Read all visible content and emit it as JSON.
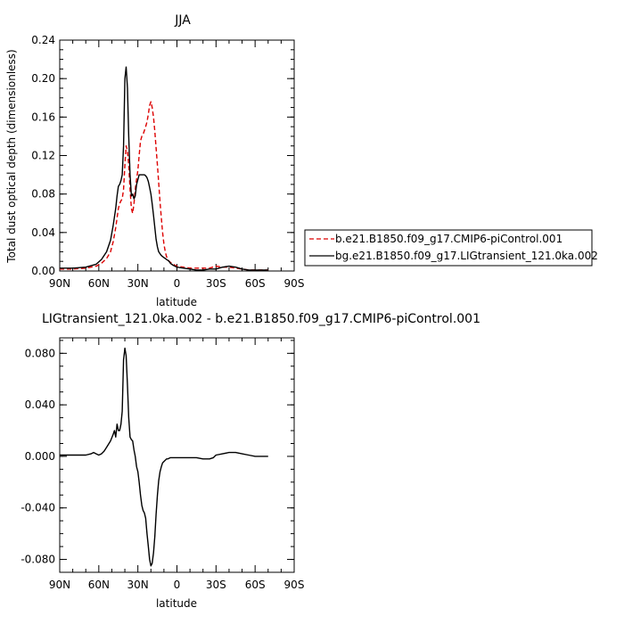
{
  "chart_data": [
    {
      "type": "line",
      "title": "JJA",
      "xlabel": "latitude",
      "ylabel": "Total dust optical depth (dimensionless)",
      "xticks": [
        "90N",
        "60N",
        "30N",
        "0",
        "30S",
        "60S",
        "90S"
      ],
      "xlim": [
        90,
        -90
      ],
      "ylim": [
        0,
        0.24
      ],
      "yticks": [
        "0.00",
        "0.04",
        "0.08",
        "0.12",
        "0.16",
        "0.20",
        "0.24"
      ],
      "legend_position": "right",
      "series": [
        {
          "name": "b.e21.B1850.f09_g17.CMIP6-piControl.001",
          "color": "#dd0000",
          "dash": "dashed",
          "x": [
            90,
            80,
            70,
            62,
            58,
            54,
            51,
            49,
            47,
            46,
            45,
            44,
            43,
            42,
            41,
            40,
            39,
            38,
            37,
            36,
            35,
            34,
            33,
            32,
            31,
            30,
            29,
            28,
            27,
            26,
            25,
            24,
            23,
            22,
            21,
            20,
            19,
            18,
            17,
            16,
            15,
            14,
            13,
            12,
            11,
            10,
            9,
            8,
            7,
            6,
            5,
            3,
            0,
            -5,
            -10,
            -15,
            -20,
            -25,
            -30,
            -35,
            -40,
            -45,
            -50,
            -55,
            -60,
            -65,
            -70
          ],
          "y": [
            0.002,
            0.002,
            0.003,
            0.005,
            0.008,
            0.013,
            0.02,
            0.03,
            0.045,
            0.055,
            0.065,
            0.07,
            0.073,
            0.075,
            0.085,
            0.11,
            0.13,
            0.125,
            0.11,
            0.085,
            0.065,
            0.06,
            0.07,
            0.085,
            0.095,
            0.105,
            0.12,
            0.135,
            0.14,
            0.142,
            0.146,
            0.15,
            0.155,
            0.163,
            0.172,
            0.176,
            0.17,
            0.16,
            0.145,
            0.128,
            0.11,
            0.092,
            0.072,
            0.055,
            0.04,
            0.028,
            0.02,
            0.015,
            0.012,
            0.01,
            0.009,
            0.007,
            0.005,
            0.004,
            0.003,
            0.003,
            0.003,
            0.003,
            0.005,
            0.004,
            0.004,
            0.003,
            0.002,
            0.001,
            0.001,
            0.001,
            0.001
          ]
        },
        {
          "name": "bg.e21.B1850.f09_g17.LIGtransient_121.0ka.002",
          "color": "#000000",
          "dash": "solid",
          "x": [
            90,
            80,
            70,
            62,
            58,
            54,
            51,
            49,
            47,
            46,
            45,
            44,
            43,
            42,
            41,
            40,
            39,
            38,
            37,
            36,
            35,
            34,
            33,
            32,
            31,
            30,
            29,
            28,
            27,
            26,
            25,
            24,
            23,
            22,
            21,
            20,
            19,
            18,
            17,
            16,
            15,
            14,
            13,
            12,
            11,
            10,
            9,
            8,
            7,
            6,
            5,
            3,
            0,
            -5,
            -10,
            -15,
            -20,
            -25,
            -30,
            -35,
            -40,
            -45,
            -50,
            -55,
            -60,
            -65,
            -70
          ],
          "y": [
            0.003,
            0.003,
            0.004,
            0.007,
            0.012,
            0.02,
            0.032,
            0.047,
            0.065,
            0.078,
            0.088,
            0.09,
            0.094,
            0.1,
            0.13,
            0.2,
            0.212,
            0.19,
            0.14,
            0.1,
            0.078,
            0.08,
            0.075,
            0.078,
            0.09,
            0.095,
            0.1,
            0.1,
            0.1,
            0.1,
            0.1,
            0.099,
            0.097,
            0.093,
            0.087,
            0.08,
            0.07,
            0.058,
            0.045,
            0.033,
            0.025,
            0.02,
            0.018,
            0.016,
            0.015,
            0.014,
            0.013,
            0.012,
            0.011,
            0.01,
            0.008,
            0.006,
            0.004,
            0.003,
            0.002,
            0.001,
            0.001,
            0.002,
            0.002,
            0.004,
            0.005,
            0.004,
            0.002,
            0.001,
            0.001,
            0.001,
            0.001
          ]
        }
      ]
    },
    {
      "type": "line",
      "title": "LIGtransient_121.0ka.002 - b.e21.B1850.f09_g17.CMIP6-piControl.001",
      "xlabel": "latitude",
      "ylabel": "",
      "xticks": [
        "90N",
        "60N",
        "30N",
        "0",
        "30S",
        "60S",
        "90S"
      ],
      "xlim": [
        90,
        -90
      ],
      "ylim": [
        -0.09,
        0.092
      ],
      "yticks": [
        "-0.080",
        "-0.040",
        "0.000",
        "0.040",
        "0.080"
      ],
      "series": [
        {
          "name": "",
          "color": "#000000",
          "dash": "solid",
          "x": [
            90,
            80,
            70,
            66,
            64,
            62,
            60,
            58,
            56,
            54,
            51,
            49,
            48,
            47,
            46,
            45,
            44,
            43,
            42,
            41,
            40,
            39,
            38,
            37,
            36,
            35,
            34,
            33,
            32,
            31,
            30,
            29,
            28,
            27,
            26,
            25,
            24,
            23,
            22,
            21,
            20,
            19,
            18,
            17,
            16,
            15,
            14,
            13,
            12,
            11,
            10,
            9,
            8,
            7,
            5,
            3,
            0,
            -5,
            -10,
            -15,
            -20,
            -25,
            -28,
            -30,
            -35,
            -40,
            -45,
            -50,
            -55,
            -60,
            -65,
            -70
          ],
          "y": [
            0.001,
            0.001,
            0.001,
            0.002,
            0.003,
            0.002,
            0.001,
            0.002,
            0.004,
            0.007,
            0.012,
            0.017,
            0.02,
            0.015,
            0.025,
            0.02,
            0.02,
            0.025,
            0.035,
            0.075,
            0.084,
            0.078,
            0.055,
            0.03,
            0.015,
            0.013,
            0.012,
            0.005,
            0.0,
            -0.008,
            -0.012,
            -0.02,
            -0.03,
            -0.038,
            -0.042,
            -0.044,
            -0.048,
            -0.06,
            -0.07,
            -0.08,
            -0.085,
            -0.083,
            -0.075,
            -0.062,
            -0.045,
            -0.03,
            -0.019,
            -0.012,
            -0.008,
            -0.005,
            -0.004,
            -0.003,
            -0.002,
            -0.002,
            -0.001,
            -0.001,
            -0.001,
            -0.001,
            -0.001,
            -0.001,
            -0.002,
            -0.002,
            -0.001,
            0.001,
            0.002,
            0.003,
            0.003,
            0.002,
            0.001,
            0.0,
            0.0,
            0.0
          ]
        }
      ]
    }
  ]
}
